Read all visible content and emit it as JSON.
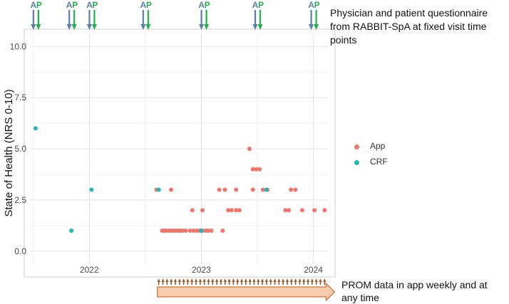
{
  "chart_data": {
    "type": "scatter",
    "title": "",
    "ylabel": "State of Health (NRS 0-10)",
    "xlabel": "",
    "ylim": [
      -0.6,
      10.6
    ],
    "xlim": [
      2021.47,
      2024.13
    ],
    "x_ticks": [
      2022,
      2023,
      2024
    ],
    "x_tick_labels": [
      "2022",
      "2023",
      "2024"
    ],
    "y_ticks": [
      0.0,
      2.5,
      5.0,
      7.5,
      10.0
    ],
    "y_tick_labels": [
      "0.0",
      "2.5",
      "5.0",
      "7.5",
      "10.0"
    ],
    "grid": true,
    "legend_position": "right",
    "series": [
      {
        "name": "App",
        "color": "#F2756A",
        "points": [
          [
            2022.6,
            3
          ],
          [
            2022.73,
            3
          ],
          [
            2023.16,
            3
          ],
          [
            2023.21,
            3
          ],
          [
            2023.31,
            3
          ],
          [
            2023.46,
            3
          ],
          [
            2023.55,
            3
          ],
          [
            2023.59,
            3
          ],
          [
            2023.8,
            3
          ],
          [
            2023.84,
            3
          ],
          [
            2023.43,
            5
          ],
          [
            2023.46,
            4
          ],
          [
            2023.49,
            4
          ],
          [
            2023.52,
            4
          ],
          [
            2022.92,
            2
          ],
          [
            2023.01,
            2
          ],
          [
            2023.24,
            2
          ],
          [
            2023.27,
            2
          ],
          [
            2023.31,
            2
          ],
          [
            2023.34,
            2
          ],
          [
            2023.75,
            2
          ],
          [
            2023.78,
            2
          ],
          [
            2023.9,
            2
          ],
          [
            2024.01,
            2
          ],
          [
            2024.1,
            2
          ],
          [
            2022.65,
            1
          ],
          [
            2022.67,
            1
          ],
          [
            2022.69,
            1
          ],
          [
            2022.71,
            1
          ],
          [
            2022.73,
            1
          ],
          [
            2022.75,
            1
          ],
          [
            2022.77,
            1
          ],
          [
            2022.79,
            1
          ],
          [
            2022.81,
            1
          ],
          [
            2022.83,
            1
          ],
          [
            2022.86,
            1
          ],
          [
            2022.9,
            1
          ],
          [
            2022.93,
            1
          ],
          [
            2022.96,
            1
          ],
          [
            2022.99,
            1
          ],
          [
            2023.01,
            1
          ],
          [
            2023.04,
            1
          ],
          [
            2023.06,
            1
          ],
          [
            2023.09,
            1
          ],
          [
            2023.19,
            1
          ]
        ]
      },
      {
        "name": "CRF",
        "color": "#1FB8BD",
        "points": [
          [
            2021.52,
            6
          ],
          [
            2021.84,
            1
          ],
          [
            2022.02,
            3
          ],
          [
            2022.62,
            3
          ],
          [
            2023.0,
            1
          ],
          [
            2023.58,
            3
          ]
        ]
      }
    ]
  },
  "annotations": {
    "top_text": "Physician and patient questionnaire from RABBIT-SpA at fixed visit time points",
    "bottom_text": "PROM data in app weekly and at any time",
    "visit_marker_labels": {
      "physician": "A",
      "patient": "P"
    },
    "visit_time_points": [
      2021.52,
      2021.84,
      2022.02,
      2022.5,
      2023.02,
      2023.5,
      2024.0
    ],
    "app_range": [
      2022.62,
      2024.1
    ],
    "colors": {
      "physician_arrow": "#5B7FA6",
      "patient_arrow": "#22B24C",
      "prom_arrow_fill": "#F8CBAD",
      "prom_arrow_stroke": "#C55A11",
      "prom_tick": "#9B5A2B"
    }
  }
}
